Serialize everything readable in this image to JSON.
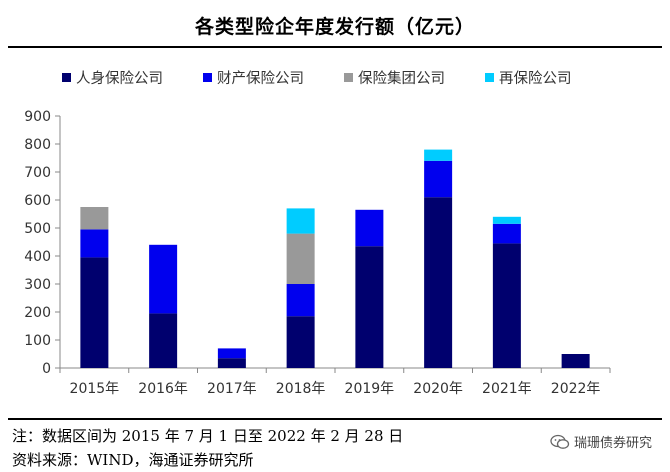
{
  "header": {
    "title": "各类型险企年度发行额（亿元）"
  },
  "footer": {
    "note": "注：数据区间为 2015 年 7 月 1 日至 2022 年 2 月 28 日",
    "source": "资料来源：WIND，海通证券研究所",
    "watermark": "瑞珊债券研究"
  },
  "chart_data": {
    "type": "bar",
    "stacked": true,
    "title": "各类型险企年度发行额（亿元）",
    "xlabel": "",
    "ylabel": "",
    "categories": [
      "2015年",
      "2016年",
      "2017年",
      "2018年",
      "2019年",
      "2020年",
      "2021年",
      "2022年"
    ],
    "ylim": [
      0,
      900
    ],
    "yticks": [
      0,
      100,
      200,
      300,
      400,
      500,
      600,
      700,
      800,
      900
    ],
    "yticklabels": [
      "0",
      "100",
      "200",
      "300",
      "400",
      "500",
      "600",
      "700",
      "800",
      "900"
    ],
    "grid": false,
    "legend_position": "top",
    "series": [
      {
        "name": "人身保险公司",
        "color": "#00006e",
        "values": [
          395,
          195,
          35,
          185,
          435,
          610,
          445,
          50
        ]
      },
      {
        "name": "财产保险公司",
        "color": "#0000ee",
        "values": [
          100,
          245,
          35,
          115,
          130,
          130,
          70,
          0
        ]
      },
      {
        "name": "保险集团公司",
        "color": "#999999",
        "values": [
          80,
          0,
          0,
          180,
          0,
          0,
          0,
          0
        ]
      },
      {
        "name": "再保险公司",
        "color": "#00ccff",
        "values": [
          0,
          0,
          0,
          90,
          0,
          40,
          25,
          0
        ]
      }
    ]
  }
}
